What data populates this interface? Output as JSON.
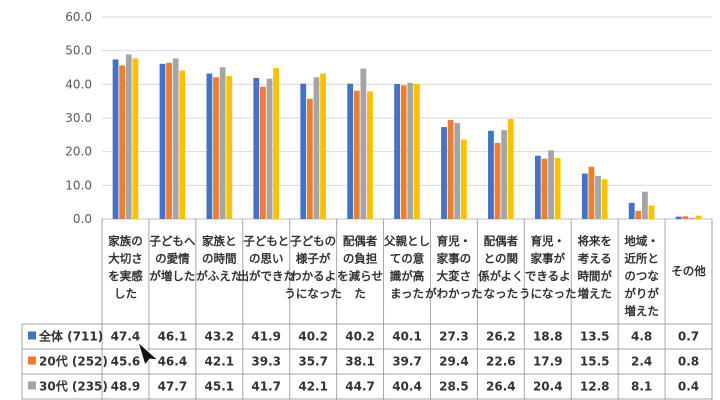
{
  "chart_data": {
    "type": "bar",
    "ylim": [
      0,
      60
    ],
    "yticks": [
      "0.0",
      "10.0",
      "20.0",
      "30.0",
      "40.0",
      "50.0",
      "60.0"
    ],
    "grid": true,
    "categories": [
      "家族の大切さを実感した",
      "子どもへの愛情が増した",
      "家族との時間がふえた",
      "子どもとの思い出ができた",
      "子どもの様子がわかるようになった",
      "配偶者の負担を減らせた",
      "父親としての意識が高まった",
      "育児・家事の大変さがわかった",
      "配偶者との関係がよくなった",
      "育児・家事ができるようになった",
      "将来を考える時間が増えた",
      "地域・近所とのつながりが増えた",
      "その他"
    ],
    "category_lines": [
      [
        "家族の",
        "大切さ",
        "を実感",
        "した"
      ],
      [
        "子どもへ",
        "の愛情",
        "が増した"
      ],
      [
        "家族と",
        "の時間",
        "がふえた"
      ],
      [
        "子どもと",
        "の思い",
        "出ができた"
      ],
      [
        "子どもの",
        "様子が",
        "わかるよ",
        "うになった"
      ],
      [
        "配偶者",
        "の負担",
        "を減らせ",
        "た"
      ],
      [
        "父親とし",
        "ての意",
        "識が高",
        "まった"
      ],
      [
        "育児・",
        "家事の",
        "大変さ",
        "がわかった"
      ],
      [
        "配偶者",
        "との関",
        "係がよく",
        "なった"
      ],
      [
        "育児・",
        "家事が",
        "できるよ",
        "うになった"
      ],
      [
        "将来を",
        "考える",
        "時間が",
        "増えた"
      ],
      [
        "地域・",
        "近所と",
        "のつな",
        "がりが",
        "増えた"
      ],
      [
        "その他"
      ]
    ],
    "series": [
      {
        "name": "全体 (711)",
        "color": "#4472C4",
        "values": [
          47.4,
          46.1,
          43.2,
          41.9,
          40.2,
          40.2,
          40.1,
          27.3,
          26.2,
          18.8,
          13.5,
          4.8,
          0.7
        ]
      },
      {
        "name": "20代 (252)",
        "color": "#ED7D31",
        "values": [
          45.6,
          46.4,
          42.1,
          39.3,
          35.7,
          38.1,
          39.7,
          29.4,
          22.6,
          17.9,
          15.5,
          2.4,
          0.8
        ]
      },
      {
        "name": "30代 (235)",
        "color": "#A5A5A5",
        "values": [
          48.9,
          47.7,
          45.1,
          41.7,
          42.1,
          44.7,
          40.4,
          28.5,
          26.4,
          20.4,
          12.8,
          8.1,
          0.4
        ]
      },
      {
        "name": "",
        "color": "#FFC000",
        "values": [
          47.7,
          44.1,
          42.5,
          44.9,
          43.2,
          37.9,
          40.1,
          23.6,
          29.7,
          18.1,
          11.8,
          4.0,
          1.0
        ]
      }
    ],
    "table_rows_visible": 3
  },
  "icons": {
    "cursor": "mouse-pointer-icon"
  }
}
